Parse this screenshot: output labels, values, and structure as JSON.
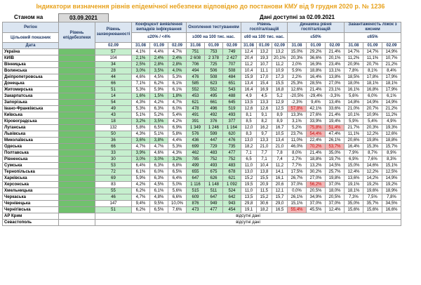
{
  "title": "Індикатори визначення рівнів епідемічної небезпеки відповідно до постанови КМУ від 9 грудня 2020 р. № 1236",
  "status": {
    "label": "Станом на",
    "date": "03.09.2021",
    "available_label": "Дані доступні за 02.09.2021"
  },
  "header": {
    "region": "Регіон",
    "target": "Цільовий показник",
    "date_col": "Дата",
    "level": "Рівень епідебезпеки",
    "morbidity": "Рівень захворюваності",
    "morbidity_target": "<75 на 100 тис. нас.",
    "morbidity_date": "02.09",
    "detection": "Коефіцієнт виявлення випадків інфікування",
    "detection_target": "≤20% / <4%",
    "testing": "Охоплення тестуванням",
    "testing_target": "≥300 на 100 тис. нас.",
    "hosp": "Рівень госпіталізацій",
    "hosp_target": "≤60 на 100 тис. нас.",
    "dyn": "Динаміка рівня госпіталізацій",
    "dyn_target": "≤50%",
    "load": "Завантаженість ліжок з киснем",
    "load_target": "≤65%",
    "dates": [
      "31.08",
      "01.09",
      "02.09"
    ]
  },
  "colors": {
    "green": "#70c16d",
    "light_green": "#c6efce",
    "pink": "#f4b6b6",
    "title": "#e8a21c"
  },
  "rows": [
    {
      "region": "Україна",
      "m": "57",
      "d": [
        "4,1%",
        "4,4%",
        "4,7%"
      ],
      "t": [
        "751",
        "753",
        "749"
      ],
      "h": [
        "12,4",
        "13,2",
        "13,2"
      ],
      "y": [
        "15,0%",
        "29,2%",
        "21,4%"
      ],
      "l": [
        "14,7%",
        "14,7%",
        "14,9%"
      ],
      "bold": true
    },
    {
      "region": "КИЇВ",
      "m": "104",
      "d": [
        "2,1%",
        "2,4%",
        "2,4%"
      ],
      "t": [
        "2 608",
        "2 378",
        "2 427"
      ],
      "h": [
        "20,4",
        "19,3",
        "20,1%"
      ],
      "y": [
        "20,3%",
        "36,6%",
        "20,1%"
      ],
      "l": [
        "11,2%",
        "11,1%",
        "10,7%"
      ]
    },
    {
      "region": "Вінницька",
      "m": "34",
      "d": [
        "2,5%",
        "2,8%",
        "2,8%"
      ],
      "t": [
        "706",
        "725",
        "707"
      ],
      "h": [
        "11,2",
        "10,7",
        "11,2"
      ],
      "y": [
        "2,0%",
        "16,9%",
        "23,4%"
      ],
      "l": [
        "20,9%",
        "20,7%",
        "21,2%"
      ]
    },
    {
      "region": "Волинська",
      "m": "28",
      "d": [
        "3,0%",
        "3,5%",
        "4,0%"
      ],
      "t": [
        "494",
        "506",
        "508"
      ],
      "h": [
        "10,4",
        "11,1",
        "10,9"
      ],
      "y": [
        "5,9%",
        "18,8%",
        "13,1%"
      ],
      "l": [
        "7,8%",
        "8,1%",
        "8,4%"
      ]
    },
    {
      "region": "Дніпропетровська",
      "m": "44",
      "d": [
        "4,6%",
        "4,5%",
        "5,3%"
      ],
      "t": [
        "476",
        "508",
        "484"
      ],
      "h": [
        "15,9",
        "17,0",
        "17,3"
      ],
      "y": [
        "2,2%",
        "16,4%",
        "13,8%"
      ],
      "l": [
        "18,5%",
        "17,8%",
        "17,9%"
      ]
    },
    {
      "region": "Донецька",
      "m": "66",
      "d": [
        "7,1%",
        "6,2%",
        "6,1%"
      ],
      "t": [
        "585",
        "623",
        "651"
      ],
      "h": [
        "13,4",
        "15,4",
        "15,5"
      ],
      "y": [
        "25,3%",
        "28,5%",
        "27,0%"
      ],
      "l": [
        "18,0%",
        "18,1%",
        "18,1%"
      ]
    },
    {
      "region": "Житомирська",
      "m": "51",
      "d": [
        "5,3%",
        "5,9%",
        "6,1%"
      ],
      "t": [
        "552",
        "552",
        "543"
      ],
      "h": [
        "16,4",
        "16,9",
        "16,8"
      ],
      "y": [
        "12,6%",
        "21,4%",
        "23,1%"
      ],
      "l": [
        "16,1%",
        "16,8%",
        "17,9%"
      ]
    },
    {
      "region": "Закарпатська",
      "m": "14",
      "d": [
        "1,6%",
        "1,5%",
        "1,8%"
      ],
      "t": [
        "453",
        "495",
        "488"
      ],
      "h": [
        "4,9",
        "4,5",
        "5,2"
      ],
      "y": [
        "-20,5%",
        "-29,4%",
        "-3,3%"
      ],
      "l": [
        "5,6%",
        "6,0%",
        "6,1%"
      ]
    },
    {
      "region": "Запорізька",
      "m": "54",
      "d": [
        "4,3%",
        "4,2%",
        "4,7%"
      ],
      "t": [
        "621",
        "661",
        "645"
      ],
      "h": [
        "13,5",
        "13,3",
        "12,9"
      ],
      "y": [
        "-2,3%",
        "9,4%",
        "13,4%"
      ],
      "l": [
        "14,8%",
        "14,9%",
        "14,9%"
      ]
    },
    {
      "region": "Івано-Франківська",
      "m": "49",
      "d": [
        "5,3%",
        "6,3%",
        "6,0%"
      ],
      "t": [
        "478",
        "496",
        "519"
      ],
      "h": [
        "12,6",
        "12,6",
        "12,5"
      ],
      "y": [
        "57,8%",
        "42,1%",
        "33,6%"
      ],
      "l": [
        "21,0%",
        "20,7%",
        "21,2%"
      ]
    },
    {
      "region": "Київська",
      "m": "43",
      "d": [
        "5,1%",
        "5,2%",
        "5,4%"
      ],
      "t": [
        "491",
        "492",
        "493"
      ],
      "h": [
        "8,1",
        "9,1",
        "8,9"
      ],
      "y": [
        "13,3%",
        "27,6%",
        "21,4%"
      ],
      "l": [
        "10,1%",
        "10,9%",
        "11,2%"
      ]
    },
    {
      "region": "Кіровоградська",
      "m": "18",
      "d": [
        "3,2%",
        "3,5%",
        "4,2%"
      ],
      "t": [
        "391",
        "376",
        "377"
      ],
      "h": [
        "8,5",
        "8,2",
        "8,9"
      ],
      "y": [
        "3,1%",
        "33,9%",
        "19,4%"
      ],
      "l": [
        "5,9%",
        "5,4%",
        "4,9%"
      ]
    },
    {
      "region": "Луганська",
      "m": "132",
      "d": [
        "5,8%",
        "6,5%",
        "6,9%"
      ],
      "t": [
        "1 349",
        "1 246",
        "1 164"
      ],
      "h": [
        "12,0",
        "16,2",
        "16,7"
      ],
      "y": [
        "5,2%",
        "75,8%",
        "51,4%"
      ],
      "l": [
        "21,7%",
        "20,3%",
        "19,3%"
      ]
    },
    {
      "region": "Львівська",
      "m": "50",
      "d": [
        "4,3%",
        "5,1%",
        "5,8%"
      ],
      "t": [
        "576",
        "599",
        "620"
      ],
      "h": [
        "8,3",
        "9,7",
        "10,5"
      ],
      "y": [
        "23,7%",
        "54,4%",
        "47,4%"
      ],
      "l": [
        "11,1%",
        "12,2%",
        "12,6%"
      ]
    },
    {
      "region": "Миколаївська",
      "m": "36",
      "d": [
        "3,6%",
        "3,8%",
        "4,4%"
      ],
      "t": [
        "436",
        "447",
        "476"
      ],
      "h": [
        "13,0",
        "13,3",
        "13,4"
      ],
      "y": [
        "11,0%",
        "22,4%",
        "26,1%"
      ],
      "l": [
        "20,6%",
        "19,8%",
        "18,8%"
      ]
    },
    {
      "region": "Одеська",
      "m": "66",
      "d": [
        "4,7%",
        "4,7%",
        "5,3%"
      ],
      "t": [
        "699",
        "729",
        "735"
      ],
      "h": [
        "18,2",
        "21,0",
        "21,0"
      ],
      "y": [
        "46,0%",
        "70,2%",
        "53,7%"
      ],
      "l": [
        "16,4%",
        "15,3%",
        "15,7%"
      ]
    },
    {
      "region": "Полтавська",
      "m": "33",
      "d": [
        "3,9%",
        "4,6%",
        "4,3%"
      ],
      "t": [
        "462",
        "483",
        "477"
      ],
      "h": [
        "7,1",
        "7,7",
        "7,8"
      ],
      "y": [
        "8,0%",
        "21,4%",
        "35,0%"
      ],
      "l": [
        "7,9%",
        "8,7%",
        "8,9%"
      ]
    },
    {
      "region": "Рівненська",
      "m": "30",
      "d": [
        "3,0%",
        "3,0%",
        "3,2%"
      ],
      "t": [
        "785",
        "752",
        "752"
      ],
      "h": [
        "6,5",
        "7,1",
        "7,4"
      ],
      "y": [
        "2,7%",
        "18,8%",
        "19,7%"
      ],
      "l": [
        "6,9%",
        "7,6%",
        "8,3%"
      ]
    },
    {
      "region": "Сумська",
      "m": "53",
      "d": [
        "6,4%",
        "6,3%",
        "6,8%"
      ],
      "t": [
        "499",
        "493",
        "483"
      ],
      "h": [
        "11,0",
        "10,4",
        "11,2"
      ],
      "y": [
        "7,7%",
        "13,2%",
        "14,5%"
      ],
      "l": [
        "15,0%",
        "14,6%",
        "15,1%"
      ]
    },
    {
      "region": "Тернопільська",
      "m": "72",
      "d": [
        "6,1%",
        "6,0%",
        "6,5%"
      ],
      "t": [
        "655",
        "675",
        "678"
      ],
      "h": [
        "13,0",
        "13,8",
        "14,1"
      ],
      "y": [
        "17,5%",
        "30,2%",
        "25,7%"
      ],
      "l": [
        "12,4%",
        "12,2%",
        "12,5%"
      ]
    },
    {
      "region": "Харківська",
      "m": "69",
      "d": [
        "5,9%",
        "6,3%",
        "6,4%"
      ],
      "t": [
        "647",
        "626",
        "621"
      ],
      "h": [
        "15,2",
        "15,5",
        "16,1"
      ],
      "y": [
        "26,7%",
        "27,0%",
        "19,8%"
      ],
      "l": [
        "13,6%",
        "14,2%",
        "14,9%"
      ]
    },
    {
      "region": "Херсонська",
      "m": "83",
      "d": [
        "4,2%",
        "4,5%",
        "5,0%"
      ],
      "t": [
        "1 116",
        "1 148",
        "1 092"
      ],
      "h": [
        "19,5",
        "20,9",
        "20,6"
      ],
      "y": [
        "37,0%",
        "56,2%",
        "37,0%"
      ],
      "l": [
        "19,1%",
        "19,2%",
        "19,2%"
      ]
    },
    {
      "region": "Хмельницька",
      "m": "55",
      "d": [
        "6,2%",
        "6,1%",
        "5,6%"
      ],
      "t": [
        "515",
        "511",
        "524"
      ],
      "h": [
        "11,0",
        "11,5",
        "12,1"
      ],
      "y": [
        "0,0%",
        "20,5%",
        "18,0%"
      ],
      "l": [
        "18,1%",
        "19,6%",
        "18,9%"
      ]
    },
    {
      "region": "Черкаська",
      "m": "46",
      "d": [
        "4,7%",
        "4,8%",
        "6,6%"
      ],
      "t": [
        "609",
        "647",
        "642"
      ],
      "h": [
        "13,5",
        "15,2",
        "15,7"
      ],
      "y": [
        "26,1%",
        "34,9%",
        "20,5%"
      ],
      "l": [
        "7,3%",
        "7,5%",
        "7,8%"
      ]
    },
    {
      "region": "Чернівецька",
      "m": "147",
      "d": [
        "9,4%",
        "9,5%",
        "10,0%"
      ],
      "t": [
        "876",
        "949",
        "943"
      ],
      "h": [
        "29,8",
        "30,6",
        "29,0"
      ],
      "y": [
        "15,1%",
        "37,0%",
        "37,0%"
      ],
      "l": [
        "35,0%",
        "35,7%",
        "34,5%"
      ]
    },
    {
      "region": "Чернігівська",
      "m": "51",
      "d": [
        "6,2%",
        "6,5%",
        "7,6%"
      ],
      "t": [
        "473",
        "477",
        "454"
      ],
      "h": [
        "19,1",
        "18,2",
        "16,5"
      ],
      "y": [
        "55,4%",
        "45,5%",
        "12,4%"
      ],
      "l": [
        "15,6%",
        "15,6%",
        "16,6%"
      ]
    }
  ],
  "no_data_rows": [
    {
      "region": "АР Крим",
      "text": "відсутні дані"
    },
    {
      "region": "Севастополь",
      "text": "відсутні дані"
    }
  ]
}
